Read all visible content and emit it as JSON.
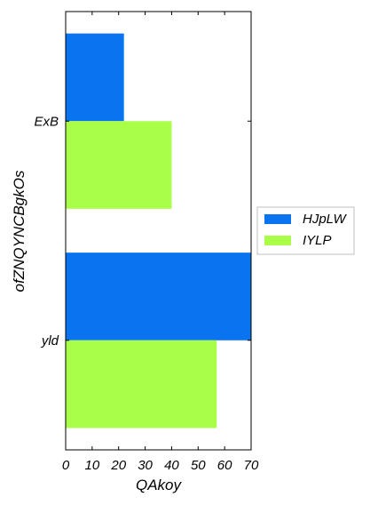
{
  "chart_data": {
    "type": "bar",
    "orientation": "horizontal",
    "title": "",
    "xlabel": "QAkoy",
    "ylabel": "ofZNQYNCBgkOs",
    "categories": [
      "ExB",
      "yld"
    ],
    "series": [
      {
        "name": "HJpLW",
        "values": [
          22,
          70
        ],
        "color": "#0a73f0"
      },
      {
        "name": "IYLP",
        "values": [
          40,
          57
        ],
        "color": "#a9ff48"
      }
    ],
    "xlim": [
      0,
      70
    ],
    "xticks": [
      0,
      10,
      20,
      30,
      40,
      50,
      60,
      70
    ],
    "grid": false,
    "legend": "right"
  }
}
